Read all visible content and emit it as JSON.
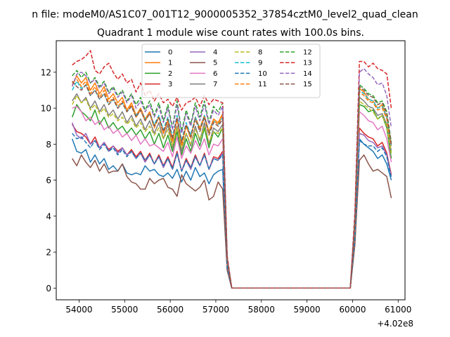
{
  "figure": {
    "suptitle": "n file: modeM0/AS1C07_001T12_9000005352_37854cztM0_level2_quad_clean",
    "offset_text": "+4.02e8"
  },
  "chart_data": {
    "type": "line",
    "title": "Quadrant 1 module wise count rates with 100.0s bins.",
    "xlabel": "",
    "ylabel": "",
    "x_offset": 402000000,
    "xlim": [
      53500,
      61150
    ],
    "ylim": [
      -0.65,
      13.75
    ],
    "xticks": [
      54000,
      55000,
      56000,
      57000,
      58000,
      59000,
      60000,
      61000
    ],
    "yticks": [
      0,
      2,
      4,
      6,
      8,
      10,
      12
    ],
    "grid": false,
    "legend_placement": "upper center, 4 columns",
    "x": [
      53850,
      53950,
      54050,
      54150,
      54250,
      54350,
      54450,
      54550,
      54650,
      54750,
      54850,
      54950,
      55050,
      55150,
      55250,
      55350,
      55450,
      55550,
      55650,
      55750,
      55850,
      55950,
      56050,
      56150,
      56250,
      56350,
      56450,
      56550,
      56650,
      56750,
      56850,
      56950,
      57050,
      57150,
      57250,
      57350,
      57450,
      57550,
      59950,
      60050,
      60150,
      60250,
      60350,
      60450,
      60550,
      60650,
      60750,
      60850
    ],
    "series": [
      {
        "name": "0",
        "color": "#1f77b4",
        "dash": "solid",
        "values": [
          8.3,
          7.6,
          7.5,
          7.7,
          7.0,
          7.4,
          6.9,
          7.2,
          6.6,
          6.8,
          6.5,
          6.9,
          6.4,
          6.3,
          6.4,
          6.3,
          6.8,
          6.5,
          6.6,
          6.3,
          6.2,
          6.4,
          6.1,
          6.6,
          5.9,
          6.5,
          6.0,
          6.7,
          6.2,
          6.4,
          5.8,
          6.3,
          6.5,
          6.6,
          1.0,
          0.0,
          0.0,
          0.0,
          0.0,
          2.5,
          8.3,
          8.0,
          7.8,
          7.6,
          7.2,
          7.4,
          6.9,
          6.0
        ]
      },
      {
        "name": "1",
        "color": "#ff7f0e",
        "dash": "solid",
        "values": [
          11.3,
          11.8,
          11.4,
          11.7,
          11.0,
          11.4,
          10.8,
          11.2,
          10.5,
          10.8,
          10.3,
          10.6,
          9.9,
          10.3,
          9.6,
          10.0,
          9.4,
          9.8,
          9.0,
          9.5,
          8.6,
          9.3,
          8.2,
          9.4,
          8.0,
          9.0,
          8.4,
          9.5,
          8.9,
          9.6,
          8.7,
          9.4,
          9.2,
          9.7,
          1.6,
          0.0,
          0.0,
          0.0,
          0.0,
          3.7,
          11.1,
          10.9,
          10.5,
          10.4,
          10.0,
          10.2,
          9.5,
          8.0
        ]
      },
      {
        "name": "2",
        "color": "#2ca02c",
        "dash": "solid",
        "values": [
          9.5,
          10.2,
          9.8,
          9.6,
          9.3,
          9.9,
          9.1,
          9.5,
          8.9,
          9.2,
          8.8,
          9.0,
          8.6,
          8.9,
          8.5,
          8.8,
          8.3,
          8.7,
          8.0,
          8.6,
          7.8,
          8.5,
          7.6,
          8.7,
          7.4,
          8.3,
          7.6,
          8.6,
          7.9,
          8.9,
          7.8,
          8.7,
          8.4,
          8.9,
          1.4,
          0.0,
          0.0,
          0.0,
          0.0,
          3.3,
          10.2,
          10.1,
          9.8,
          9.9,
          9.4,
          9.6,
          8.9,
          7.2
        ]
      },
      {
        "name": "3",
        "color": "#d62728",
        "dash": "solid",
        "values": [
          9.1,
          8.7,
          8.6,
          8.4,
          8.0,
          8.4,
          7.8,
          8.1,
          7.7,
          7.9,
          7.6,
          7.8,
          7.4,
          7.7,
          7.3,
          7.6,
          7.1,
          7.5,
          6.9,
          7.4,
          6.8,
          7.3,
          6.7,
          7.6,
          6.5,
          7.2,
          6.7,
          7.4,
          6.8,
          7.5,
          6.6,
          7.3,
          7.2,
          7.6,
          1.2,
          0.0,
          0.0,
          0.0,
          0.0,
          2.9,
          8.9,
          8.6,
          8.4,
          8.3,
          7.9,
          8.1,
          7.5,
          6.3
        ]
      },
      {
        "name": "4",
        "color": "#9467bd",
        "dash": "solid",
        "values": [
          9.2,
          8.5,
          8.3,
          8.6,
          8.0,
          8.2,
          7.8,
          8.1,
          7.6,
          7.9,
          7.5,
          7.8,
          7.4,
          7.6,
          7.2,
          7.5,
          7.0,
          7.4,
          6.9,
          7.3,
          6.7,
          7.2,
          6.6,
          7.5,
          6.5,
          7.1,
          6.6,
          7.3,
          6.8,
          7.4,
          6.6,
          7.2,
          7.1,
          7.5,
          1.2,
          0.0,
          0.0,
          0.0,
          0.0,
          2.8,
          8.6,
          8.5,
          8.2,
          8.1,
          7.8,
          7.9,
          7.4,
          6.2
        ]
      },
      {
        "name": "5",
        "color": "#8c564b",
        "dash": "solid",
        "values": [
          7.2,
          6.8,
          7.4,
          7.0,
          6.7,
          7.1,
          6.5,
          6.9,
          6.4,
          6.5,
          6.5,
          6.9,
          6.2,
          5.9,
          5.8,
          5.5,
          5.5,
          6.1,
          5.8,
          6.0,
          6.1,
          5.6,
          5.5,
          5.1,
          6.3,
          5.8,
          5.6,
          5.4,
          5.6,
          6.0,
          4.9,
          5.1,
          5.9,
          5.5,
          1.0,
          0.0,
          0.0,
          0.0,
          0.0,
          2.4,
          7.1,
          7.4,
          6.9,
          6.5,
          6.6,
          6.4,
          6.2,
          5.0
        ]
      },
      {
        "name": "6",
        "color": "#e377c2",
        "dash": "solid",
        "values": [
          10.0,
          10.1,
          9.8,
          9.3,
          9.5,
          9.1,
          9.3,
          8.8,
          9.0,
          8.6,
          8.8,
          8.4,
          8.6,
          8.2,
          8.5,
          8.0,
          8.3,
          7.9,
          8.0,
          7.8,
          7.6,
          8.1,
          7.3,
          8.4,
          7.2,
          7.9,
          7.5,
          8.2,
          7.7,
          8.3,
          7.4,
          8.0,
          7.9,
          8.3,
          1.3,
          0.0,
          0.0,
          0.0,
          0.0,
          3.1,
          9.8,
          9.6,
          9.3,
          9.2,
          8.8,
          9.0,
          8.3,
          7.0
        ]
      },
      {
        "name": "7",
        "color": "#7f7f7f",
        "dash": "solid",
        "values": [
          10.4,
          10.8,
          10.3,
          10.6,
          10.0,
          10.4,
          9.8,
          10.2,
          9.6,
          9.9,
          9.4,
          9.8,
          9.2,
          9.6,
          9.0,
          9.4,
          8.8,
          9.3,
          8.6,
          9.2,
          8.3,
          9.1,
          7.8,
          9.0,
          7.6,
          8.6,
          7.9,
          9.0,
          8.2,
          9.2,
          8.0,
          8.9,
          8.7,
          9.1,
          1.5,
          0.0,
          0.0,
          0.0,
          0.0,
          3.5,
          10.6,
          10.4,
          10.1,
          10.0,
          9.6,
          9.7,
          9.1,
          7.6
        ]
      },
      {
        "name": "8",
        "color": "#bcbd22",
        "dash": "dashed",
        "values": [
          10.2,
          10.7,
          10.3,
          10.5,
          9.9,
          10.2,
          9.7,
          10.0,
          9.5,
          9.7,
          9.3,
          9.5,
          9.1,
          9.4,
          8.9,
          9.2,
          8.7,
          9.0,
          8.5,
          8.9,
          8.3,
          8.8,
          7.9,
          8.9,
          7.8,
          8.6,
          8.0,
          8.8,
          8.3,
          9.0,
          8.1,
          8.7,
          8.6,
          8.9,
          1.5,
          0.0,
          0.0,
          0.0,
          0.0,
          3.4,
          10.4,
          10.2,
          10.0,
          9.8,
          9.4,
          9.6,
          9.0,
          7.5
        ]
      },
      {
        "name": "9",
        "color": "#17becf",
        "dash": "dashed",
        "values": [
          11.0,
          11.5,
          11.1,
          11.3,
          10.7,
          11.0,
          10.5,
          10.8,
          10.2,
          10.5,
          10.0,
          10.3,
          9.8,
          10.1,
          9.6,
          9.9,
          9.4,
          9.7,
          9.1,
          9.6,
          8.8,
          9.5,
          8.4,
          9.6,
          8.2,
          9.2,
          8.5,
          9.5,
          8.8,
          9.6,
          8.6,
          9.3,
          9.1,
          9.5,
          1.6,
          0.0,
          0.0,
          0.0,
          0.0,
          3.6,
          11.0,
          10.8,
          10.5,
          10.4,
          10.0,
          10.1,
          9.5,
          7.9
        ]
      },
      {
        "name": "10",
        "color": "#1f77b4",
        "dash": "dashed",
        "values": [
          8.6,
          8.3,
          8.4,
          8.1,
          7.8,
          8.2,
          7.7,
          8.0,
          7.6,
          7.8,
          7.4,
          7.7,
          7.3,
          7.6,
          7.2,
          7.5,
          7.1,
          7.4,
          6.9,
          7.3,
          6.8,
          7.2,
          6.6,
          7.5,
          6.5,
          7.1,
          6.7,
          7.3,
          6.8,
          7.4,
          6.6,
          7.2,
          7.1,
          7.4,
          1.2,
          0.0,
          0.0,
          0.0,
          0.0,
          2.8,
          8.2,
          8.0,
          7.9,
          7.9,
          7.6,
          7.8,
          7.3,
          6.1
        ]
      },
      {
        "name": "11",
        "color": "#ff7f0e",
        "dash": "dashed",
        "values": [
          11.4,
          11.6,
          11.2,
          11.5,
          10.8,
          11.2,
          10.6,
          11.0,
          10.3,
          10.6,
          10.1,
          10.4,
          9.8,
          10.2,
          9.5,
          9.9,
          9.3,
          9.7,
          8.9,
          9.5,
          8.6,
          9.3,
          8.1,
          9.4,
          7.9,
          9.0,
          8.3,
          9.4,
          8.8,
          9.5,
          8.6,
          9.3,
          9.1,
          9.6,
          1.6,
          0.0,
          0.0,
          0.0,
          0.0,
          3.6,
          10.9,
          10.7,
          10.4,
          10.3,
          9.9,
          10.0,
          9.4,
          7.9
        ]
      },
      {
        "name": "12",
        "color": "#2ca02c",
        "dash": "dashed",
        "values": [
          11.8,
          12.1,
          11.7,
          12.0,
          11.4,
          11.7,
          11.2,
          11.5,
          10.9,
          11.2,
          10.7,
          11.0,
          10.4,
          10.8,
          10.2,
          10.6,
          9.9,
          10.4,
          9.6,
          10.3,
          9.3,
          10.2,
          8.9,
          10.4,
          8.7,
          9.9,
          9.1,
          10.3,
          9.5,
          10.4,
          9.2,
          10.1,
          9.8,
          10.3,
          1.7,
          0.0,
          0.0,
          0.0,
          0.0,
          3.9,
          11.3,
          11.1,
          10.8,
          10.7,
          10.3,
          10.4,
          9.8,
          8.1
        ]
      },
      {
        "name": "13",
        "color": "#d62728",
        "dash": "dashed",
        "values": [
          12.4,
          12.6,
          12.7,
          12.9,
          13.2,
          12.1,
          11.9,
          12.3,
          12.5,
          12.0,
          11.6,
          11.9,
          11.4,
          11.6,
          10.9,
          11.4,
          10.7,
          11.0,
          10.4,
          10.8,
          10.3,
          10.5,
          10.1,
          10.6,
          9.9,
          10.3,
          10.4,
          10.6,
          10.1,
          10.7,
          10.2,
          10.5,
          10.4,
          10.3,
          1.8,
          0.0,
          0.0,
          0.0,
          0.0,
          4.2,
          12.6,
          12.6,
          12.3,
          12.5,
          12.2,
          12.1,
          11.9,
          10.0
        ]
      },
      {
        "name": "14",
        "color": "#9467bd",
        "dash": "dashed",
        "values": [
          11.2,
          11.9,
          12.0,
          11.8,
          11.4,
          11.6,
          11.1,
          11.4,
          10.8,
          11.1,
          10.6,
          10.9,
          10.3,
          10.7,
          10.0,
          10.4,
          9.8,
          10.2,
          9.5,
          10.1,
          9.2,
          10.0,
          8.8,
          10.2,
          8.6,
          9.7,
          9.0,
          10.1,
          9.3,
          10.2,
          9.1,
          9.9,
          9.6,
          10.1,
          1.7,
          0.0,
          0.0,
          0.0,
          0.0,
          3.9,
          12.0,
          12.2,
          11.9,
          11.7,
          11.3,
          11.4,
          10.7,
          8.9
        ]
      },
      {
        "name": "15",
        "color": "#8c564b",
        "dash": "dashed",
        "values": [
          11.5,
          11.2,
          11.0,
          11.3,
          10.7,
          11.0,
          10.5,
          10.8,
          10.2,
          10.5,
          10.0,
          10.3,
          9.8,
          10.1,
          9.5,
          9.9,
          9.3,
          9.7,
          9.0,
          9.5,
          8.7,
          9.4,
          8.3,
          9.5,
          8.1,
          9.1,
          8.4,
          9.4,
          8.7,
          9.5,
          8.5,
          9.2,
          9.0,
          9.4,
          1.6,
          0.0,
          0.0,
          0.0,
          0.0,
          3.7,
          11.2,
          11.0,
          10.7,
          10.6,
          10.2,
          10.3,
          9.7,
          8.0
        ]
      }
    ]
  }
}
